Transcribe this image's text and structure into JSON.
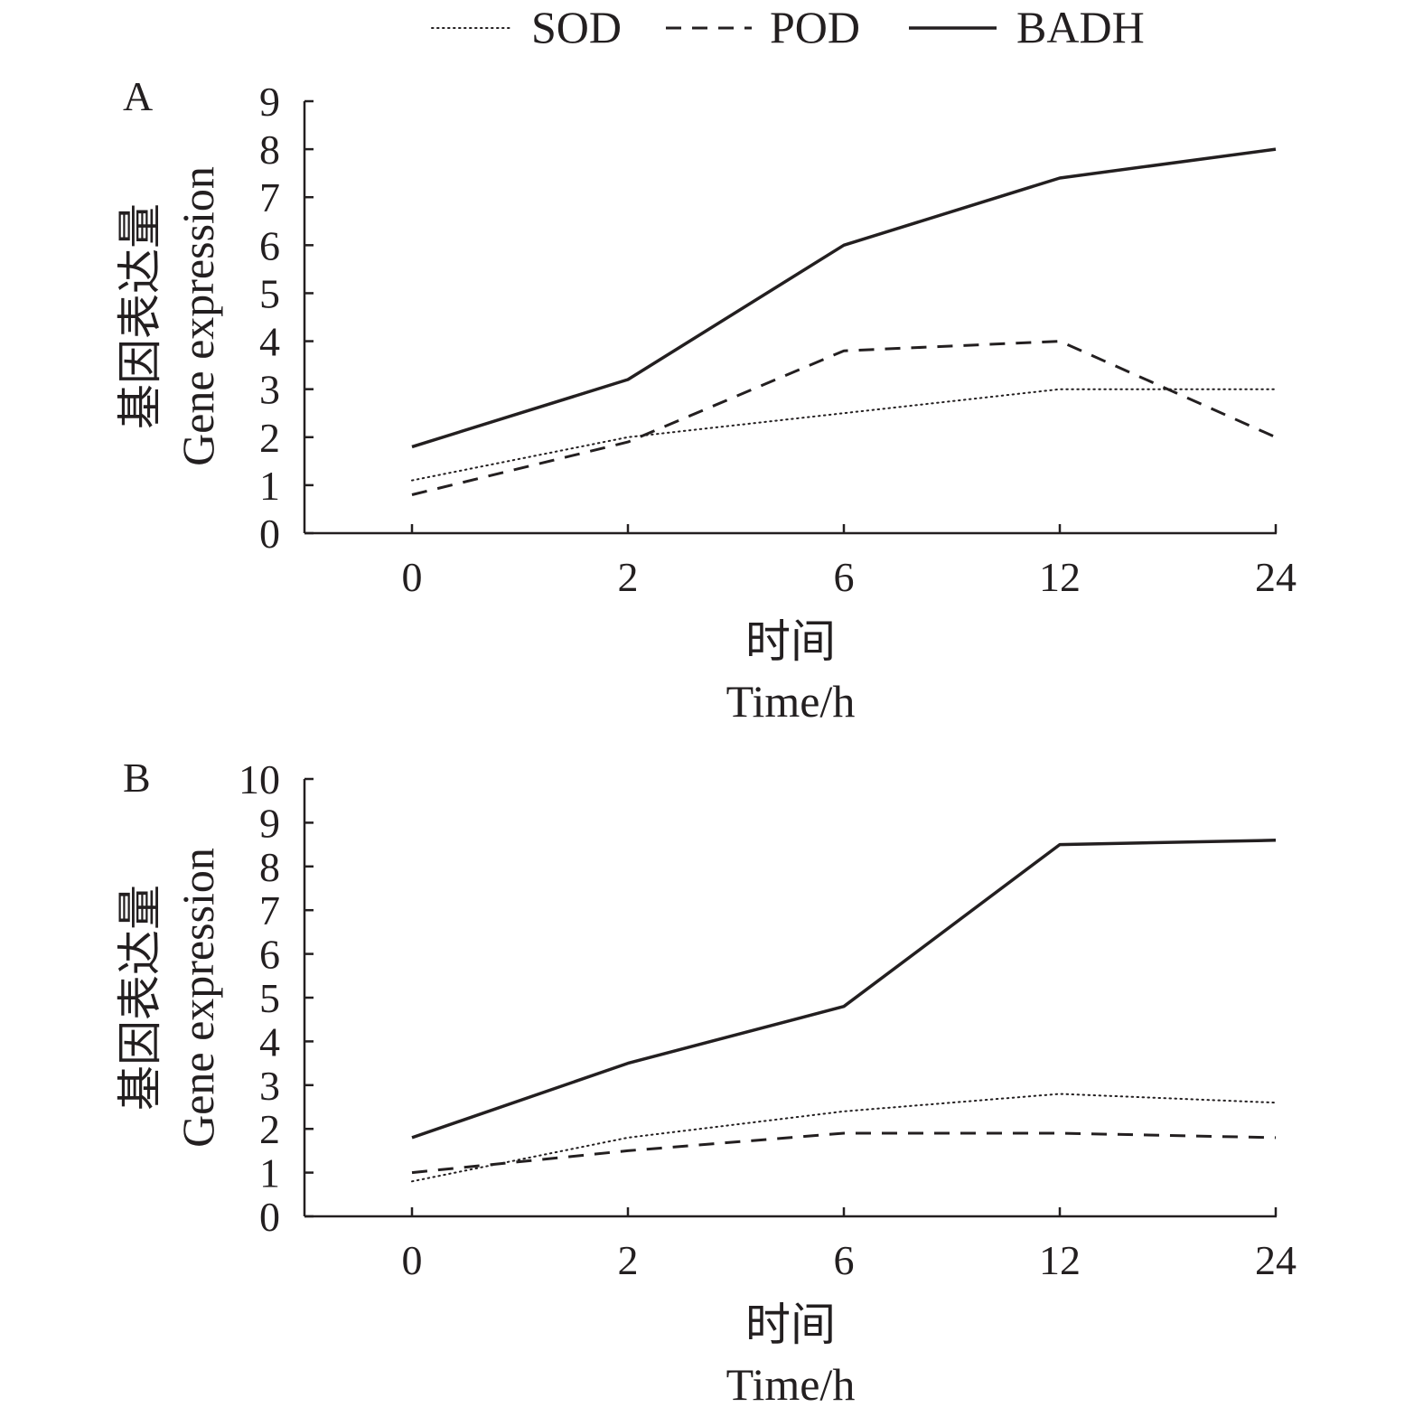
{
  "legend": [
    {
      "name": "SOD",
      "style": "dotted"
    },
    {
      "name": "POD",
      "style": "dashed"
    },
    {
      "name": "BADH",
      "style": "solid"
    }
  ],
  "chart_data": [
    {
      "type": "line",
      "panel": "A",
      "categories": [
        "0",
        "2",
        "6",
        "12",
        "24"
      ],
      "ylim": [
        0,
        9
      ],
      "yticks": [
        "0",
        "1",
        "2",
        "3",
        "4",
        "5",
        "6",
        "7",
        "8",
        "9"
      ],
      "ylabel_zh": "基因表达量",
      "ylabel_en": "Gene expression",
      "xlabel_zh": "时间",
      "xlabel_en": "Time/h",
      "series": [
        {
          "name": "SOD",
          "style": "dotted",
          "values": [
            1.1,
            2.0,
            2.5,
            3.0,
            3.0
          ]
        },
        {
          "name": "POD",
          "style": "dashed",
          "values": [
            0.8,
            1.9,
            3.8,
            4.0,
            2.0
          ]
        },
        {
          "name": "BADH",
          "style": "solid",
          "values": [
            1.8,
            3.2,
            6.0,
            7.4,
            8.0
          ]
        }
      ]
    },
    {
      "type": "line",
      "panel": "B",
      "categories": [
        "0",
        "2",
        "6",
        "12",
        "24"
      ],
      "ylim": [
        0,
        10
      ],
      "yticks": [
        "0",
        "1",
        "2",
        "3",
        "4",
        "5",
        "6",
        "7",
        "8",
        "9",
        "10"
      ],
      "ylabel_zh": "基因表达量",
      "ylabel_en": "Gene expression",
      "xlabel_zh": "时间",
      "xlabel_en": "Time/h",
      "series": [
        {
          "name": "SOD",
          "style": "dotted",
          "values": [
            0.8,
            1.8,
            2.4,
            2.8,
            2.6
          ]
        },
        {
          "name": "POD",
          "style": "dashed",
          "values": [
            1.0,
            1.5,
            1.9,
            1.9,
            1.8
          ]
        },
        {
          "name": "BADH",
          "style": "solid",
          "values": [
            1.8,
            3.5,
            4.8,
            8.5,
            8.6
          ]
        }
      ]
    }
  ]
}
